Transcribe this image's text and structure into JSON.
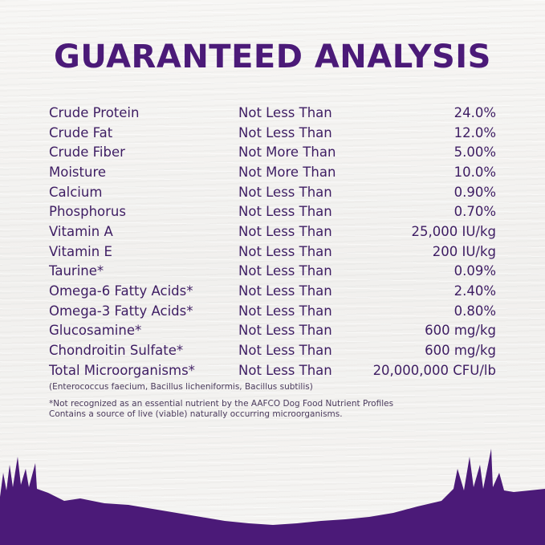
{
  "title": "GUARANTEED ANALYSIS",
  "rows": [
    {
      "nutrient": "Crude Protein",
      "qualifier": "Not Less Than",
      "value": "24.0%"
    },
    {
      "nutrient": "Crude Fat",
      "qualifier": "Not Less Than",
      "value": "12.0%"
    },
    {
      "nutrient": "Crude Fiber",
      "qualifier": "Not More Than",
      "value": "5.00%"
    },
    {
      "nutrient": "Moisture",
      "qualifier": "Not More Than",
      "value": "10.0%"
    },
    {
      "nutrient": "Calcium",
      "qualifier": "Not Less Than",
      "value": "0.90%"
    },
    {
      "nutrient": "Phosphorus",
      "qualifier": "Not Less Than",
      "value": "0.70%"
    },
    {
      "nutrient": "Vitamin A",
      "qualifier": "Not Less Than",
      "value": "25,000 IU/kg"
    },
    {
      "nutrient": "Vitamin E",
      "qualifier": "Not Less Than",
      "value": "200 IU/kg"
    },
    {
      "nutrient": "Taurine*",
      "qualifier": "Not Less Than",
      "value": "0.09%"
    },
    {
      "nutrient": "Omega-6 Fatty Acids*",
      "qualifier": "Not Less Than",
      "value": "2.40%"
    },
    {
      "nutrient": "Omega-3 Fatty Acids*",
      "qualifier": "Not Less Than",
      "value": "0.80%"
    },
    {
      "nutrient": "Glucosamine*",
      "qualifier": "Not Less Than",
      "value": "600 mg/kg"
    },
    {
      "nutrient": "Chondroitin Sulfate*",
      "qualifier": "Not Less Than",
      "value": "600 mg/kg"
    },
    {
      "nutrient": "Total Microorganisms*",
      "qualifier": "Not Less Than",
      "value": "20,000,000 CFU/lb"
    }
  ],
  "notes": {
    "strains": "(Enterococcus faecium, Bacillus licheniformis, Bacillus subtilis)",
    "aafco": "*Not recognized as an essential nutrient by the AAFCO Dog Food Nutrient Profiles",
    "live": "Contains a source of live (viable) naturally occurring microorganisms."
  },
  "colors": {
    "brand_purple": "#4b1a78",
    "text": "#3e1d63",
    "background": "#f4f3f1"
  }
}
